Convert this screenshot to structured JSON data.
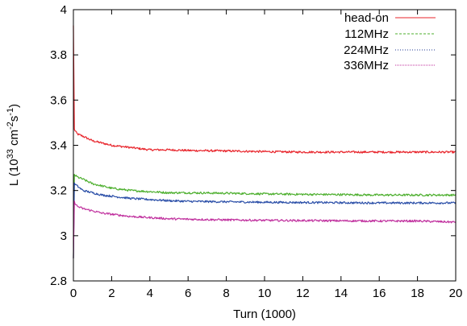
{
  "chart_data": {
    "type": "line",
    "title": "",
    "xlabel": "Turn (1000)",
    "ylabel": {
      "base": "L (10",
      "exp1": "33",
      "mid": " cm",
      "exp2": "-2",
      "unit": "s",
      "exp3": "-1",
      "close": ")"
    },
    "xlim": [
      0,
      20
    ],
    "ylim": [
      2.8,
      4.0
    ],
    "xticks": [
      "0",
      "2",
      "4",
      "6",
      "8",
      "10",
      "12",
      "14",
      "16",
      "18",
      "20"
    ],
    "yticks": [
      "2.8",
      "3",
      "3.2",
      "3.4",
      "3.6",
      "3.8",
      "4"
    ],
    "grid": false,
    "legend_position": "top-right",
    "legend": [
      {
        "name": "head-on",
        "color": "#e8242b",
        "dash": "solid"
      },
      {
        "name": "112MHz",
        "color": "#4daf2e",
        "dash": "dashed"
      },
      {
        "name": "224MHz",
        "color": "#1f3a93",
        "dash": "dotted"
      },
      {
        "name": "336MHz",
        "color": "#c0309e",
        "dash": "dotted"
      }
    ],
    "series": [
      {
        "color": "#e8242b",
        "x": [
          0,
          0.05,
          0.2,
          0.5,
          1,
          1.5,
          2,
          3,
          4,
          5,
          6,
          8,
          10,
          12,
          14,
          16,
          18,
          20
        ],
        "y": [
          3.93,
          3.47,
          3.45,
          3.44,
          3.42,
          3.41,
          3.4,
          3.39,
          3.38,
          3.38,
          3.377,
          3.375,
          3.372,
          3.37,
          3.37,
          3.37,
          3.37,
          3.37
        ]
      },
      {
        "color": "#4daf2e",
        "x": [
          0,
          0.05,
          0.2,
          0.5,
          1,
          1.5,
          2,
          3,
          4,
          5,
          6,
          8,
          10,
          12,
          14,
          16,
          18,
          20
        ],
        "y": [
          2.9,
          3.27,
          3.26,
          3.25,
          3.23,
          3.22,
          3.21,
          3.2,
          3.195,
          3.19,
          3.19,
          3.188,
          3.185,
          3.183,
          3.182,
          3.18,
          3.18,
          3.18
        ]
      },
      {
        "color": "#2b4fa8",
        "x": [
          0,
          0.05,
          0.2,
          0.5,
          1,
          1.5,
          2,
          3,
          4,
          5,
          6,
          8,
          10,
          12,
          14,
          16,
          18,
          20
        ],
        "y": [
          2.9,
          3.23,
          3.22,
          3.2,
          3.19,
          3.18,
          3.175,
          3.165,
          3.16,
          3.155,
          3.152,
          3.15,
          3.148,
          3.147,
          3.146,
          3.145,
          3.145,
          3.145
        ]
      },
      {
        "color": "#c0309e",
        "x": [
          0,
          0.05,
          0.2,
          0.5,
          1,
          1.5,
          2,
          3,
          4,
          5,
          6,
          8,
          10,
          12,
          14,
          16,
          18,
          20
        ],
        "y": [
          2.9,
          3.15,
          3.13,
          3.12,
          3.11,
          3.1,
          3.095,
          3.085,
          3.08,
          3.075,
          3.073,
          3.07,
          3.068,
          3.067,
          3.066,
          3.065,
          3.065,
          3.06
        ]
      }
    ]
  }
}
